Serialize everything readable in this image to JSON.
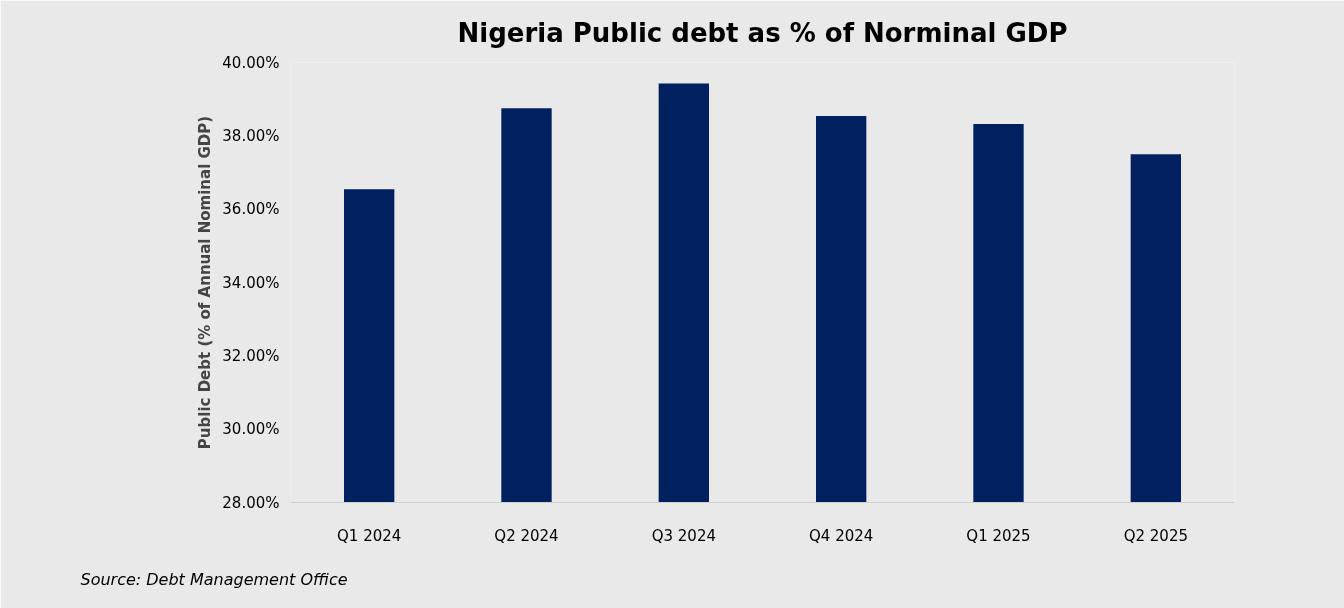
{
  "chart_data": {
    "type": "bar",
    "title": "Nigeria Public debt as % of Norminal GDP",
    "ylabel": "Public Debt (% of Annual Nominal GDP)",
    "categories": [
      "Q1 2024",
      "Q2 2024",
      "Q3 2024",
      "Q4 2024",
      "Q1 2025",
      "Q2 2025"
    ],
    "values": [
      36.54,
      38.75,
      39.43,
      38.54,
      38.32,
      37.5
    ],
    "color": "#002060",
    "ylim": [
      28,
      40
    ],
    "yticks": [
      {
        "value": 28,
        "label": "28.00%"
      },
      {
        "value": 30,
        "label": "30.00%"
      },
      {
        "value": 32,
        "label": "32.00%"
      },
      {
        "value": 34,
        "label": "34.00%"
      },
      {
        "value": 36,
        "label": "36.00%"
      },
      {
        "value": 38,
        "label": "38.00%"
      },
      {
        "value": 40,
        "label": "40.00%"
      }
    ],
    "annotations": [
      "Source: Debt Management Office"
    ]
  }
}
